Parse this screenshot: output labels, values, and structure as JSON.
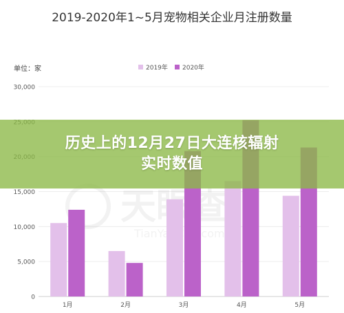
{
  "chart_data": {
    "type": "bar",
    "title": "2019-2020年1~5月宠物相关企业月注册数量",
    "ylabel": "单位：家",
    "xlabel": "",
    "categories": [
      "1月",
      "2月",
      "3月",
      "4月",
      "5月"
    ],
    "series": [
      {
        "name": "2019年",
        "values": [
          10500,
          6500,
          13900,
          16500,
          14400
        ]
      },
      {
        "name": "2020年",
        "values": [
          12400,
          4800,
          20800,
          25200,
          21300
        ]
      }
    ],
    "ylim": [
      0,
      30000
    ],
    "yticks": [
      0,
      5000,
      10000,
      15000,
      20000,
      25000,
      30000
    ],
    "ytick_labels": [
      "0",
      "5,000",
      "10,000",
      "15,000",
      "20,000",
      "25,000",
      "30,000"
    ],
    "grid": true,
    "legend_position": "top-center",
    "colors": {
      "2019年": "#e3c0ea",
      "2020年": "#bb62c9"
    }
  },
  "banner": {
    "line1": "历史上的12月27日大连核辐射",
    "line2": "实时数值"
  },
  "watermark": {
    "brand": "天眼查",
    "url": "TianYanCha.com"
  }
}
